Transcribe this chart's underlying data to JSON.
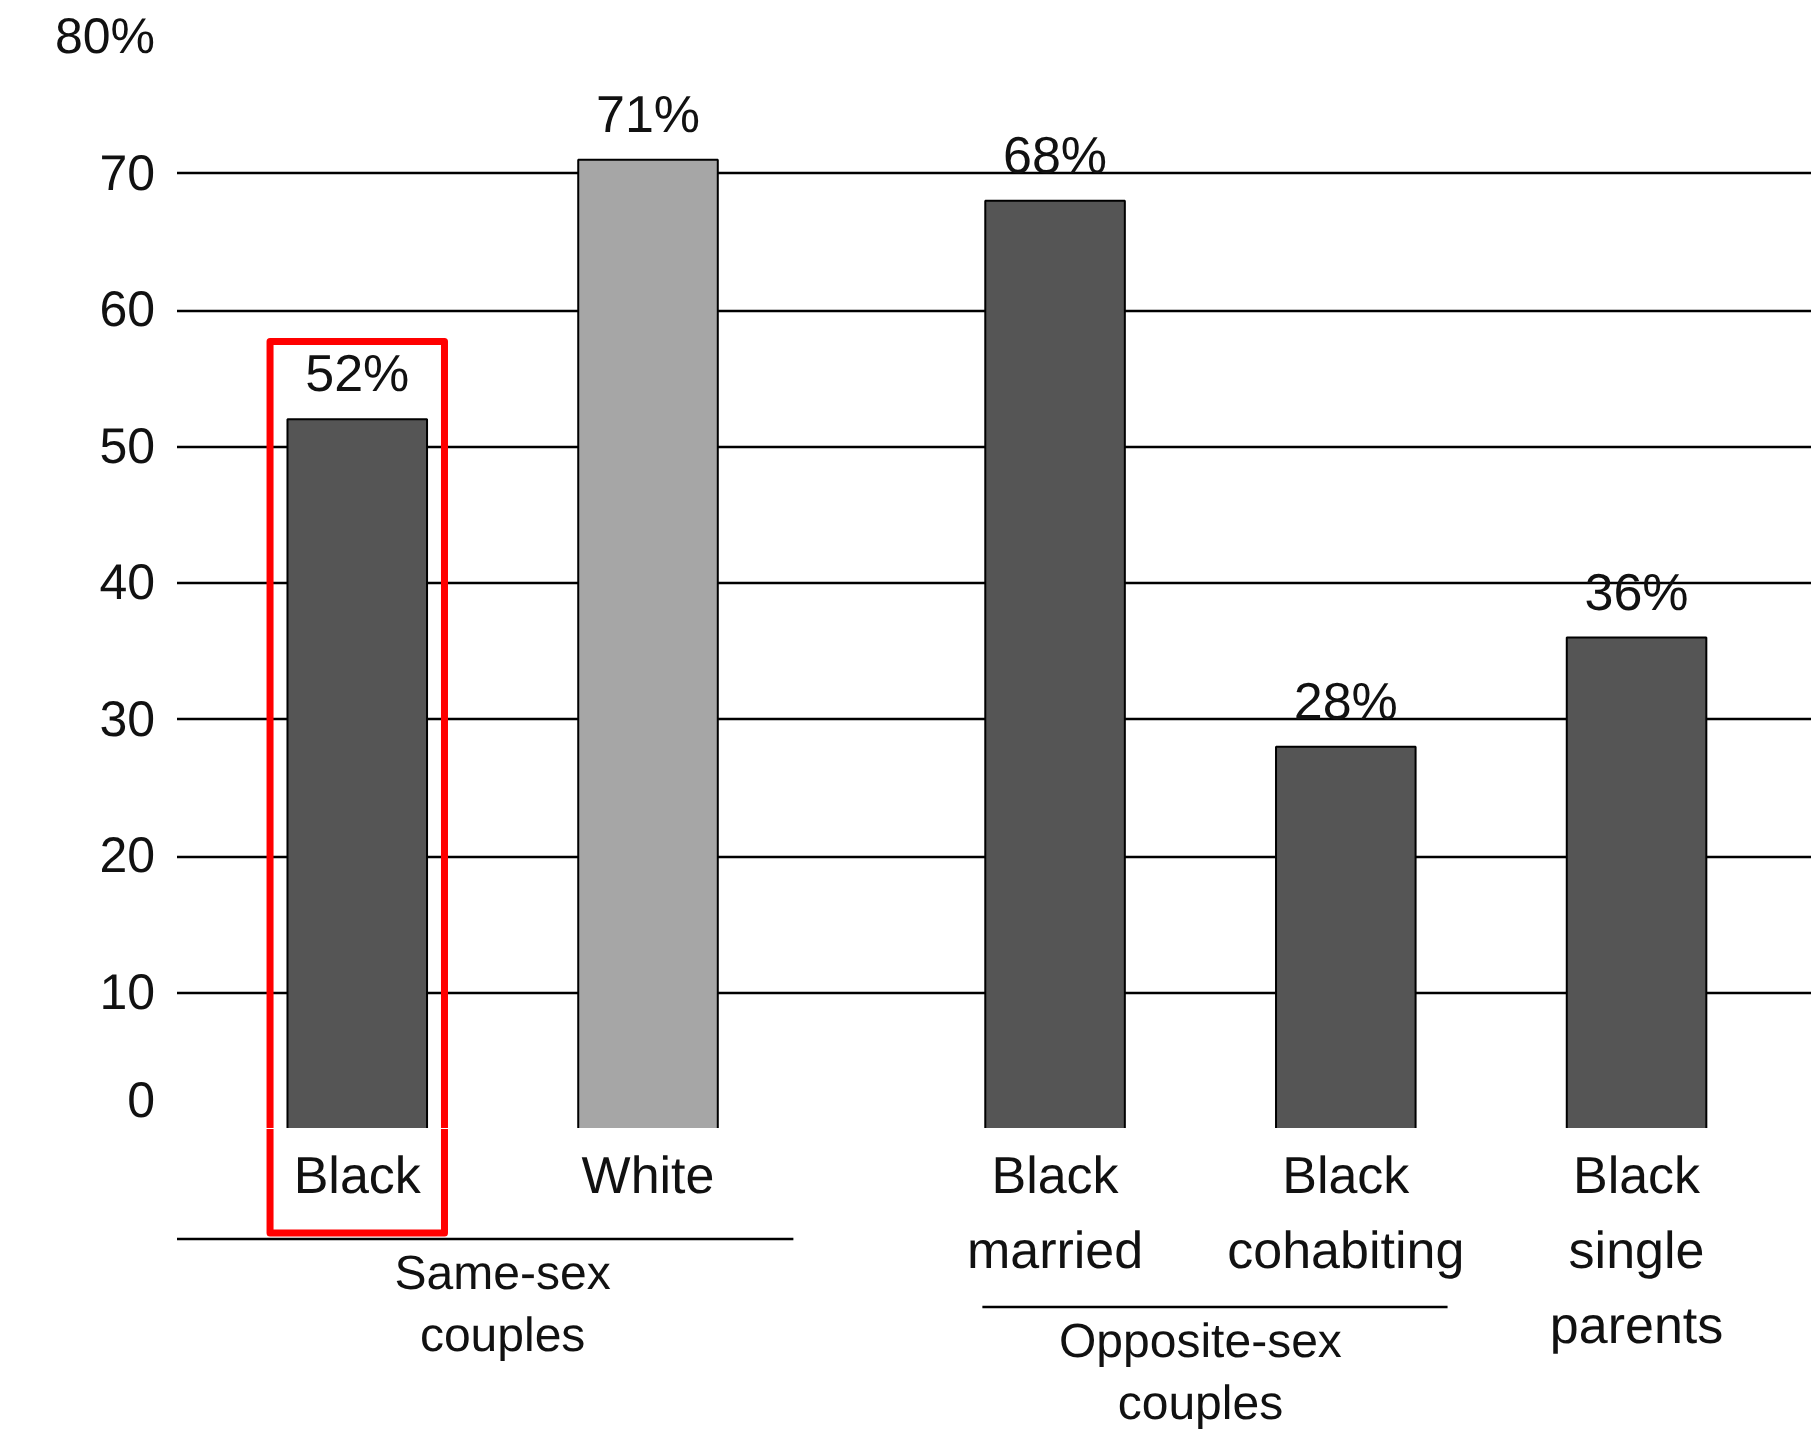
{
  "chart_data": {
    "type": "bar",
    "categories": [
      "Black",
      "White",
      "Black\nmarried",
      "Black\ncohabiting",
      "Black\nsingle\nparents"
    ],
    "values": [
      52,
      71,
      68,
      28,
      36
    ],
    "colors": [
      "#555555",
      "#a6a6a6",
      "#555555",
      "#555555",
      "#555555"
    ],
    "value_labels": [
      "52%",
      "71%",
      "68%",
      "28%",
      "36%"
    ],
    "ylim": [
      0,
      80
    ],
    "yticks": [
      0,
      10,
      20,
      30,
      40,
      50,
      60,
      70,
      {
        "value": 80,
        "label": "80%"
      }
    ],
    "grid": "y",
    "annotations": [
      "Same-sex\ncouples",
      "Opposite-sex\ncouples"
    ]
  }
}
